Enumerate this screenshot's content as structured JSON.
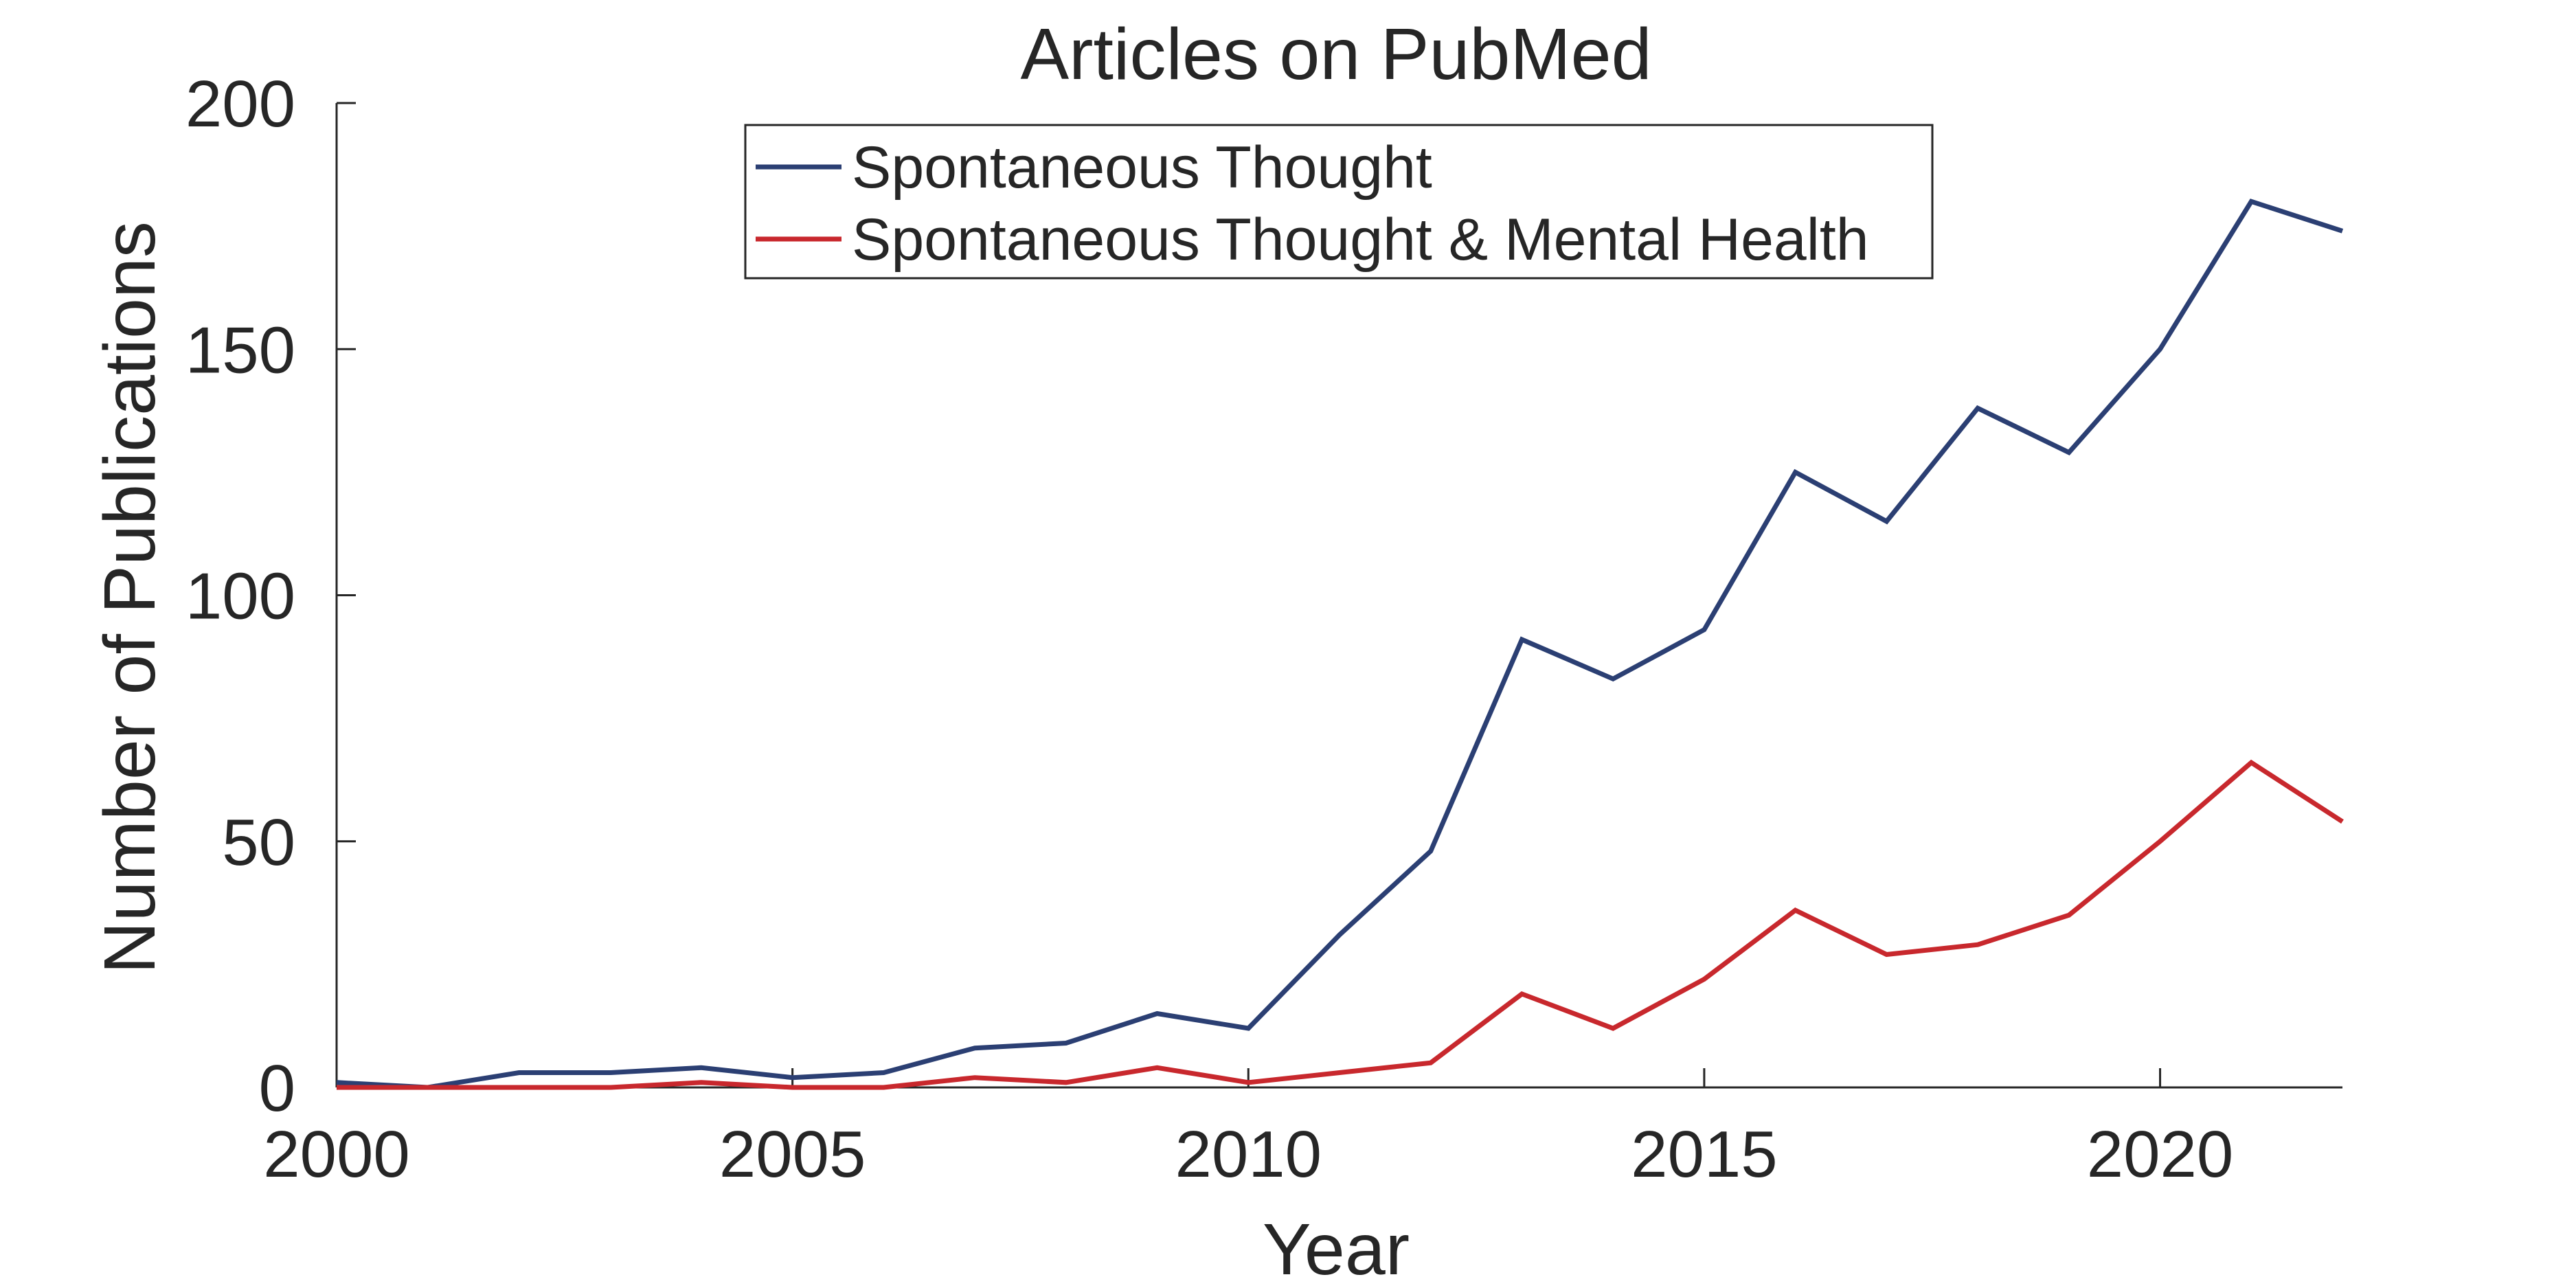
{
  "chart_data": {
    "type": "line",
    "title": "Articles on PubMed",
    "xlabel": "Year",
    "ylabel": "Number of Publications",
    "xlim": [
      2000,
      2022
    ],
    "ylim": [
      0,
      200
    ],
    "xticks": [
      2000,
      2005,
      2010,
      2015,
      2020
    ],
    "yticks": [
      0,
      50,
      100,
      150,
      200
    ],
    "grid": false,
    "legend_position": "top-center",
    "x": [
      2000,
      2001,
      2002,
      2003,
      2004,
      2005,
      2006,
      2007,
      2008,
      2009,
      2010,
      2011,
      2012,
      2013,
      2014,
      2015,
      2016,
      2017,
      2018,
      2019,
      2020,
      2021,
      2022
    ],
    "series": [
      {
        "name": "Spontaneous Thought",
        "color": "#2b3f73",
        "values": [
          1,
          0,
          3,
          3,
          4,
          2,
          3,
          8,
          9,
          15,
          12,
          31,
          48,
          91,
          83,
          93,
          125,
          115,
          138,
          129,
          150,
          180,
          174
        ]
      },
      {
        "name": "Spontaneous Thought & Mental Health",
        "color": "#c8282d",
        "values": [
          0,
          0,
          0,
          0,
          1,
          0,
          0,
          2,
          1,
          4,
          1,
          3,
          5,
          19,
          12,
          22,
          36,
          27,
          29,
          35,
          50,
          66,
          54
        ]
      }
    ]
  }
}
